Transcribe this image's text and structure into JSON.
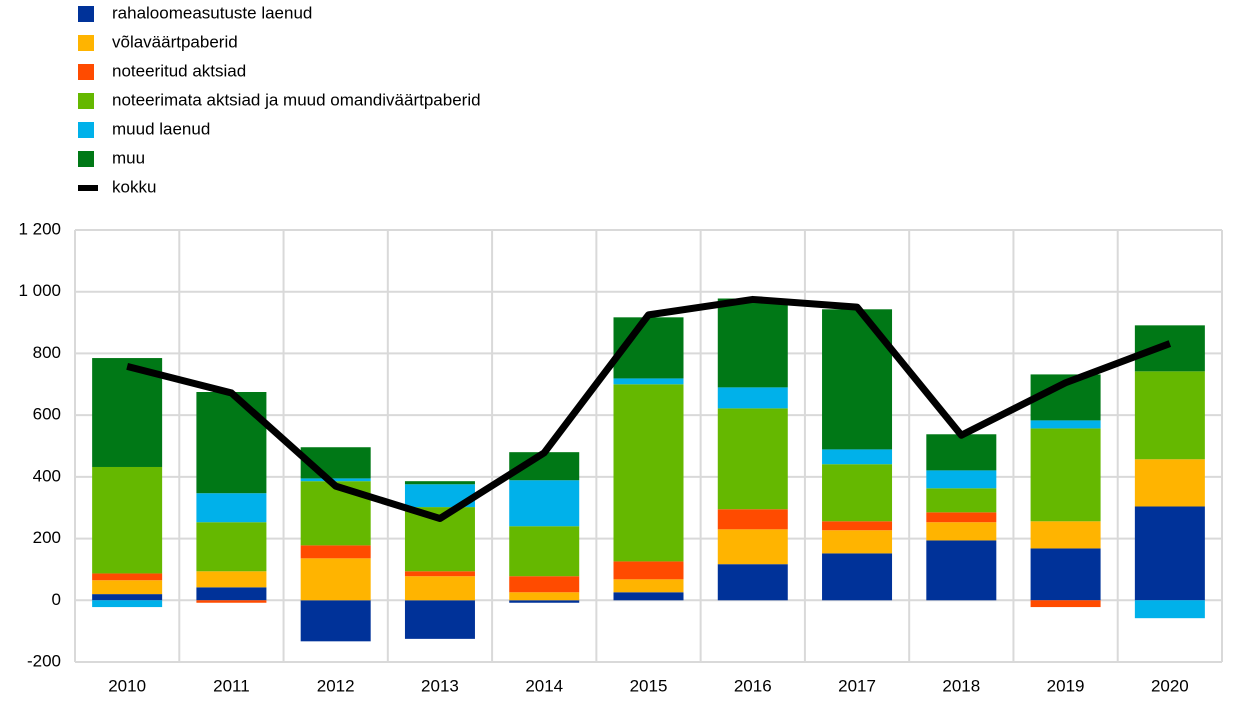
{
  "chart_data": {
    "type": "bar",
    "stacked": true,
    "grid": true,
    "categories": [
      "2010",
      "2011",
      "2012",
      "2013",
      "2014",
      "2015",
      "2016",
      "2017",
      "2018",
      "2019",
      "2020"
    ],
    "series": [
      {
        "name": "rahaloomeasutuste  laenud",
        "color": "#003299",
        "values": [
          20,
          42,
          -133,
          -125,
          -8,
          26,
          117,
          152,
          194,
          168,
          304
        ]
      },
      {
        "name": "võlaväärtpaberid",
        "color": "#ffb400",
        "values": [
          45,
          52,
          136,
          78,
          26,
          42,
          113,
          75,
          59,
          88,
          153
        ]
      },
      {
        "name": "noteeritud  aktsiad",
        "color": "#ff4b00",
        "values": [
          22,
          -8,
          42,
          16,
          52,
          58,
          65,
          29,
          32,
          -22,
          0
        ]
      },
      {
        "name": "noteerimata aktsiad ja muud omandiväärtpaberid",
        "color": "#65b800",
        "values": [
          345,
          159,
          208,
          208,
          162,
          574,
          327,
          185,
          78,
          301,
          285
        ]
      },
      {
        "name": "muud laenud",
        "color": "#00b1ea",
        "values": [
          -22,
          94,
          9,
          74,
          149,
          19,
          68,
          48,
          58,
          26,
          -58
        ]
      },
      {
        "name": "muu",
        "color": "#007816",
        "values": [
          353,
          328,
          101,
          10,
          91,
          198,
          288,
          454,
          117,
          149,
          149
        ]
      },
      {
        "name": "kokku",
        "color": "#000000",
        "type": "line",
        "values": [
          758,
          672,
          370,
          265,
          478,
          925,
          975,
          950,
          535,
          705,
          832
        ]
      }
    ],
    "ylim": [
      -200,
      1200
    ],
    "yticks": [
      -200,
      0,
      200,
      400,
      600,
      800,
      {
        "value": 1000,
        "label": "1 000"
      },
      {
        "value": 1200,
        "label": "1 200"
      }
    ]
  }
}
